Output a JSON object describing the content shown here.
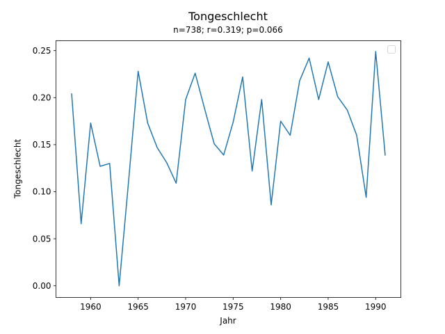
{
  "figure": {
    "title": "Tongeschlecht",
    "subtitle": "n=738; r=0.319; p=0.066"
  },
  "chart_data": {
    "type": "line",
    "title": "Tongeschlecht",
    "subtitle": "n=738; r=0.319; p=0.066",
    "xlabel": "Jahr",
    "ylabel": "Tongeschlecht",
    "xlim": [
      1956.35,
      1992.65
    ],
    "ylim": [
      -0.0124,
      0.2605
    ],
    "xticks": [
      1960,
      1965,
      1970,
      1975,
      1980,
      1985,
      1990
    ],
    "xtick_labels": [
      "1960",
      "1965",
      "1970",
      "1975",
      "1980",
      "1985",
      "1990"
    ],
    "yticks": [
      0.0,
      0.05,
      0.1,
      0.15,
      0.2,
      0.25
    ],
    "ytick_labels": [
      "0.00",
      "0.05",
      "0.10",
      "0.15",
      "0.20",
      "0.25"
    ],
    "grid": false,
    "legend": {
      "location": "top-right",
      "entries": []
    },
    "series": [
      {
        "color": "#1f77b4",
        "x": [
          1958,
          1959,
          1960,
          1961,
          1962,
          1963,
          1964,
          1965,
          1966,
          1967,
          1968,
          1969,
          1970,
          1971,
          1972,
          1973,
          1974,
          1975,
          1976,
          1977,
          1978,
          1979,
          1980,
          1981,
          1982,
          1983,
          1984,
          1985,
          1986,
          1987,
          1988,
          1989,
          1990,
          1991
        ],
        "y": [
          0.204,
          0.066,
          0.173,
          0.127,
          0.13,
          0.0,
          0.112,
          0.228,
          0.173,
          0.147,
          0.131,
          0.109,
          0.198,
          0.226,
          0.188,
          0.151,
          0.139,
          0.174,
          0.222,
          0.122,
          0.198,
          0.086,
          0.175,
          0.16,
          0.218,
          0.242,
          0.198,
          0.238,
          0.201,
          0.187,
          0.16,
          0.094,
          0.249,
          0.139
        ]
      }
    ]
  }
}
